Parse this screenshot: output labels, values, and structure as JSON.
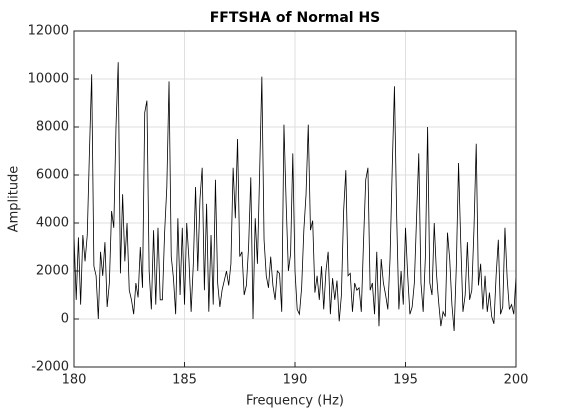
{
  "chart_data": {
    "type": "line",
    "title": "FFTSHA of Normal HS",
    "xlabel": "Frequency (Hz)",
    "ylabel": "Amplitude",
    "xlim": [
      180,
      200
    ],
    "ylim": [
      -2000,
      12000
    ],
    "xticks": [
      180,
      185,
      190,
      195,
      200
    ],
    "yticks": [
      -2000,
      0,
      2000,
      4000,
      6000,
      8000,
      10000,
      12000
    ],
    "grid": true,
    "series": [
      {
        "name": "FFTSHA",
        "color": "#000000",
        "x": [
          180.0,
          180.1,
          180.2,
          180.3,
          180.4,
          180.5,
          180.6,
          180.7,
          180.8,
          180.9,
          181.0,
          181.1,
          181.2,
          181.3,
          181.4,
          181.5,
          181.6,
          181.7,
          181.8,
          181.9,
          182.0,
          182.1,
          182.2,
          182.3,
          182.4,
          182.5,
          182.6,
          182.7,
          182.8,
          182.9,
          183.0,
          183.1,
          183.2,
          183.3,
          183.4,
          183.5,
          183.6,
          183.7,
          183.8,
          183.9,
          184.0,
          184.1,
          184.2,
          184.3,
          184.4,
          184.5,
          184.6,
          184.7,
          184.8,
          184.9,
          185.0,
          185.1,
          185.2,
          185.3,
          185.4,
          185.5,
          185.6,
          185.7,
          185.8,
          185.9,
          186.0,
          186.1,
          186.2,
          186.3,
          186.4,
          186.5,
          186.6,
          186.7,
          186.8,
          186.9,
          187.0,
          187.1,
          187.2,
          187.3,
          187.4,
          187.5,
          187.6,
          187.7,
          187.8,
          187.9,
          188.0,
          188.1,
          188.2,
          188.3,
          188.4,
          188.5,
          188.6,
          188.7,
          188.8,
          188.9,
          189.0,
          189.1,
          189.2,
          189.3,
          189.4,
          189.5,
          189.6,
          189.7,
          189.8,
          189.9,
          190.0,
          190.1,
          190.2,
          190.3,
          190.4,
          190.5,
          190.6,
          190.7,
          190.8,
          190.9,
          191.0,
          191.1,
          191.2,
          191.3,
          191.4,
          191.5,
          191.6,
          191.7,
          191.8,
          191.9,
          192.0,
          192.1,
          192.2,
          192.3,
          192.4,
          192.5,
          192.6,
          192.7,
          192.8,
          192.9,
          193.0,
          193.1,
          193.2,
          193.3,
          193.4,
          193.5,
          193.6,
          193.7,
          193.8,
          193.9,
          194.0,
          194.1,
          194.2,
          194.3,
          194.4,
          194.5,
          194.6,
          194.7,
          194.8,
          194.9,
          195.0,
          195.1,
          195.2,
          195.3,
          195.4,
          195.5,
          195.6,
          195.7,
          195.8,
          195.9,
          196.0,
          196.1,
          196.2,
          196.3,
          196.4,
          196.5,
          196.6,
          196.7,
          196.8,
          196.9,
          197.0,
          197.1,
          197.2,
          197.3,
          197.4,
          197.5,
          197.6,
          197.7,
          197.8,
          197.9,
          198.0,
          198.1,
          198.2,
          198.3,
          198.4,
          198.5,
          198.6,
          198.7,
          198.8,
          198.9,
          199.0,
          199.1,
          199.2,
          199.3,
          199.4,
          199.5,
          199.6,
          199.7,
          199.8,
          199.9,
          200.0
        ],
        "values": [
          3500,
          800,
          3400,
          600,
          3500,
          2400,
          3500,
          7000,
          10200,
          2200,
          1800,
          0,
          2800,
          1800,
          3200,
          500,
          1500,
          4500,
          3800,
          8000,
          10700,
          1900,
          5200,
          2400,
          4000,
          1200,
          800,
          200,
          1500,
          900,
          3000,
          1300,
          8600,
          9100,
          2000,
          400,
          3700,
          600,
          3800,
          800,
          800,
          3600,
          5500,
          9900,
          2600,
          1700,
          200,
          4200,
          1000,
          3800,
          600,
          4000,
          2500,
          300,
          2300,
          5500,
          2000,
          5000,
          6300,
          1200,
          4800,
          300,
          3500,
          600,
          5800,
          1500,
          500,
          1200,
          1600,
          2000,
          1400,
          2300,
          6300,
          4200,
          7500,
          2600,
          2800,
          1000,
          1400,
          3000,
          5900,
          0,
          4200,
          2300,
          6100,
          10100,
          3300,
          1800,
          1300,
          2600,
          1400,
          800,
          2000,
          1900,
          300,
          8100,
          4800,
          2000,
          2700,
          6900,
          2000,
          400,
          200,
          1300,
          3700,
          5200,
          8100,
          3700,
          4100,
          1100,
          1800,
          800,
          2200,
          400,
          2000,
          2800,
          200,
          1700,
          800,
          1600,
          -100,
          1000,
          4500,
          6200,
          1800,
          1900,
          300,
          1500,
          1200,
          1300,
          300,
          3200,
          5800,
          6300,
          1200,
          1500,
          200,
          2800,
          -300,
          2500,
          1500,
          1000,
          400,
          2500,
          6300,
          9700,
          4300,
          400,
          2000,
          600,
          3800,
          1800,
          200,
          500,
          1500,
          4200,
          6900,
          1500,
          300,
          2600,
          8000,
          1500,
          1000,
          4000,
          1900,
          700,
          -300,
          300,
          100,
          3600,
          2500,
          600,
          -500,
          2200,
          6500,
          3200,
          300,
          1000,
          3200,
          800,
          1200,
          3800,
          7300,
          1400,
          2300,
          400,
          1800,
          300,
          1100,
          100,
          -200,
          1800,
          3300,
          200,
          500,
          3800,
          1700,
          400,
          600,
          200,
          1800
        ]
      }
    ]
  }
}
